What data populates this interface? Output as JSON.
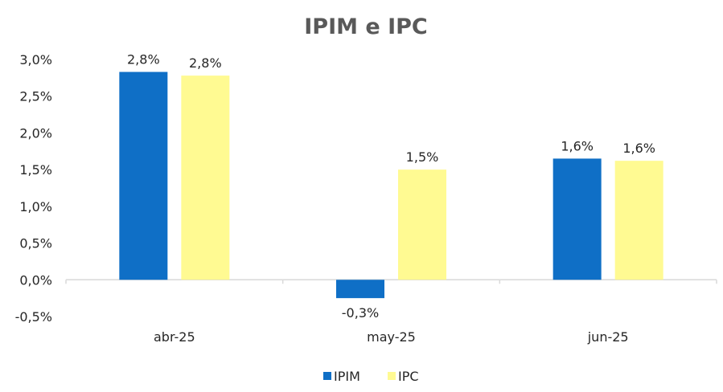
{
  "chart_data": {
    "type": "bar",
    "title": "IPIM e IPC",
    "categories": [
      "abr-25",
      "may-25",
      "jun-25"
    ],
    "series": [
      {
        "name": "IPIM",
        "color": "#0F6FC6",
        "values": [
          2.83,
          -0.25,
          1.65
        ],
        "labels": [
          "2,8%",
          "-0,3%",
          "1,6%"
        ]
      },
      {
        "name": "IPC",
        "color": "#FFFA92",
        "values": [
          2.78,
          1.5,
          1.62
        ],
        "labels": [
          "2,8%",
          "1,5%",
          "1,6%"
        ]
      }
    ],
    "ylim": [
      -0.5,
      3.0
    ],
    "yticks": [
      {
        "value": 3.0,
        "label": "3,0%"
      },
      {
        "value": 2.5,
        "label": "2,5%"
      },
      {
        "value": 2.0,
        "label": "2,0%"
      },
      {
        "value": 1.5,
        "label": "1,5%"
      },
      {
        "value": 1.0,
        "label": "1,0%"
      },
      {
        "value": 0.5,
        "label": "0,5%"
      },
      {
        "value": 0.0,
        "label": "0,0%"
      },
      {
        "value": -0.5,
        "label": "-0,5%"
      }
    ],
    "grid": false,
    "legend_position": "bottom",
    "xlabel": "",
    "ylabel": ""
  }
}
